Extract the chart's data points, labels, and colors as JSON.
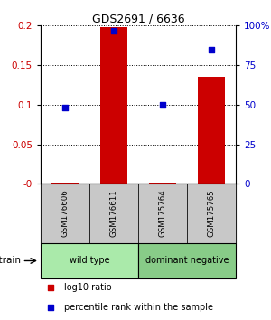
{
  "title": "GDS2691 / 6636",
  "samples": [
    "GSM176606",
    "GSM176611",
    "GSM175764",
    "GSM175765"
  ],
  "log10_ratio": [
    0.002,
    0.198,
    0.002,
    0.135
  ],
  "percentile_rank": [
    48,
    97,
    50,
    85
  ],
  "ylim_left": [
    0,
    0.2
  ],
  "ylim_right": [
    0,
    100
  ],
  "yticks_left": [
    0,
    0.05,
    0.1,
    0.15,
    0.2
  ],
  "yticks_right": [
    0,
    25,
    50,
    75,
    100
  ],
  "ytick_labels_left": [
    "-0",
    "0.05",
    "0.1",
    "0.15",
    "0.2"
  ],
  "ytick_labels_right": [
    "0",
    "25",
    "50",
    "75",
    "100%"
  ],
  "groups": [
    {
      "label": "wild type",
      "color": "#AAEAAA",
      "samples": [
        0,
        1
      ]
    },
    {
      "label": "dominant negative",
      "color": "#88CC88",
      "samples": [
        2,
        3
      ]
    }
  ],
  "bar_color": "#CC0000",
  "dot_color": "#0000CC",
  "bar_width": 0.55,
  "background_color": "#ffffff",
  "label_box_color": "#C8C8C8",
  "strain_label": "strain",
  "legend_items": [
    {
      "color": "#CC0000",
      "label": "log10 ratio"
    },
    {
      "color": "#0000CC",
      "label": "percentile rank within the sample"
    }
  ]
}
